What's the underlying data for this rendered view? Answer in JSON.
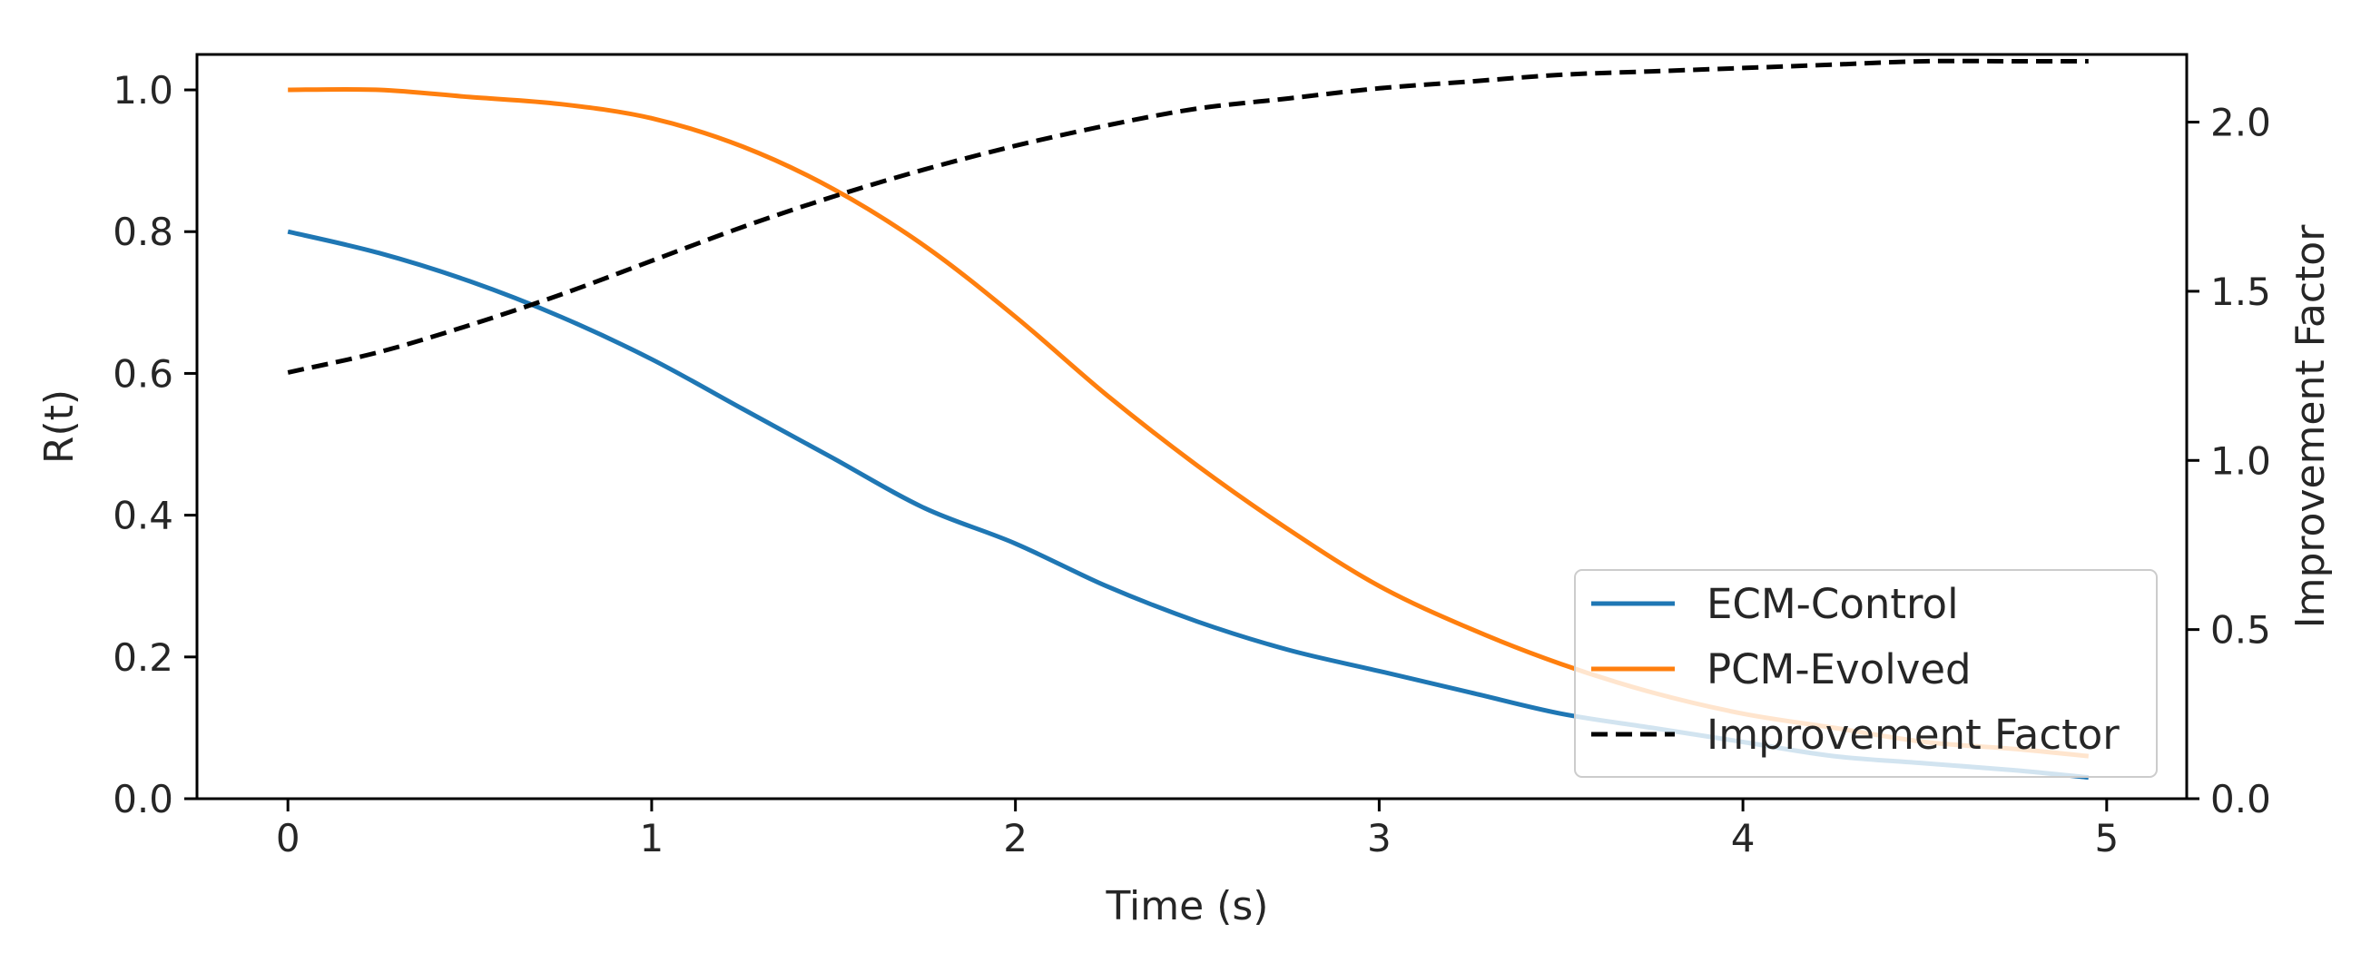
{
  "chart_data": {
    "type": "line",
    "title": "",
    "xlabel": "Time (s)",
    "ylabel": "R(t)",
    "y2label": "Improvement Factor",
    "xlim": [
      -0.25,
      5.22
    ],
    "ylim": [
      0.0,
      1.05
    ],
    "y2lim": [
      0.0,
      2.2
    ],
    "x_ticks": [
      0,
      1,
      2,
      3,
      4,
      5
    ],
    "y_ticks": [
      0.0,
      0.2,
      0.4,
      0.6,
      0.8,
      1.0
    ],
    "y2_ticks": [
      0.0,
      0.5,
      1.0,
      1.5,
      2.0
    ],
    "x_tick_labels": [
      "0",
      "1",
      "2",
      "3",
      "4",
      "5"
    ],
    "y_tick_labels": [
      "0.0",
      "0.2",
      "0.4",
      "0.6",
      "0.8",
      "1.0"
    ],
    "y2_tick_labels": [
      "0.0",
      "0.5",
      "1.0",
      "1.5",
      "2.0"
    ],
    "grid": false,
    "legend_position": "lower-right",
    "x": [
      0,
      0.25,
      0.5,
      0.75,
      1.0,
      1.25,
      1.5,
      1.75,
      2.0,
      2.25,
      2.5,
      2.75,
      3.0,
      3.25,
      3.5,
      3.75,
      4.0,
      4.25,
      4.5,
      4.75,
      4.95
    ],
    "series": [
      {
        "name": "ECM-Control",
        "axis": "left",
        "style": "solid",
        "color": "#1f77b4",
        "values": [
          0.8,
          0.77,
          0.73,
          0.68,
          0.62,
          0.55,
          0.48,
          0.41,
          0.36,
          0.3,
          0.25,
          0.21,
          0.18,
          0.15,
          0.12,
          0.1,
          0.08,
          0.06,
          0.05,
          0.04,
          0.03
        ]
      },
      {
        "name": "PCM-Evolved",
        "axis": "left",
        "style": "solid",
        "color": "#ff7f0e",
        "values": [
          1.0,
          1.0,
          0.99,
          0.98,
          0.96,
          0.92,
          0.86,
          0.78,
          0.68,
          0.57,
          0.47,
          0.38,
          0.3,
          0.24,
          0.19,
          0.15,
          0.12,
          0.1,
          0.08,
          0.07,
          0.06
        ]
      },
      {
        "name": "Improvement Factor",
        "axis": "right",
        "style": "dashed",
        "color": "#000000",
        "values": [
          1.26,
          1.32,
          1.4,
          1.49,
          1.59,
          1.69,
          1.78,
          1.86,
          1.93,
          1.99,
          2.04,
          2.07,
          2.1,
          2.12,
          2.14,
          2.15,
          2.16,
          2.17,
          2.18,
          2.18,
          2.18
        ]
      }
    ]
  }
}
